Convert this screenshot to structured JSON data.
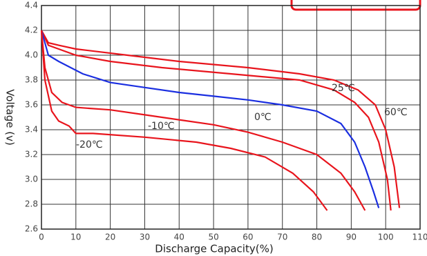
{
  "chart_data": {
    "type": "line",
    "xlabel": "Discharge Capacity(%)",
    "ylabel": "Voltage (v)",
    "xlim": [
      0,
      110
    ],
    "xticks": [
      0,
      10,
      20,
      30,
      40,
      50,
      60,
      70,
      80,
      90,
      100,
      110
    ],
    "ylim": [
      2.6,
      4.4
    ],
    "yticks": [
      2.6,
      2.8,
      {
        "value": 3,
        "label": "3.0"
      },
      3.2,
      3.4,
      3.6,
      3.8,
      {
        "value": 4,
        "label": "4.0"
      },
      4.2,
      4.4
    ],
    "grid": true,
    "series": [
      {
        "name": "60℃",
        "color": "#e8141c",
        "x": [
          0,
          2,
          5,
          10,
          25,
          40,
          60,
          75,
          85,
          92,
          97,
          100,
          102.5,
          104
        ],
        "values": [
          4.2,
          4.1,
          4.08,
          4.05,
          4.0,
          3.95,
          3.9,
          3.85,
          3.8,
          3.72,
          3.6,
          3.4,
          3.1,
          2.77
        ]
      },
      {
        "name": "25℃",
        "color": "#e8141c",
        "x": [
          0,
          2,
          5,
          10,
          20,
          35,
          55,
          75,
          85,
          91,
          95,
          98,
          100.5,
          101.5
        ],
        "values": [
          4.2,
          4.08,
          4.05,
          4.0,
          3.95,
          3.9,
          3.85,
          3.8,
          3.72,
          3.62,
          3.5,
          3.3,
          3.0,
          2.75
        ]
      },
      {
        "name": "0℃",
        "color": "#1a2ee0",
        "x": [
          0,
          2,
          5,
          12,
          20,
          30,
          40,
          50,
          60,
          70,
          80,
          87,
          91,
          94,
          96.5,
          98
        ],
        "values": [
          4.2,
          4.0,
          3.95,
          3.85,
          3.78,
          3.74,
          3.7,
          3.67,
          3.64,
          3.6,
          3.55,
          3.45,
          3.3,
          3.1,
          2.9,
          2.77
        ]
      },
      {
        "name": "-10℃",
        "color": "#e8141c",
        "x": [
          0,
          1,
          3,
          6,
          10,
          20,
          30,
          40,
          50,
          60,
          70,
          80,
          87,
          91,
          94
        ],
        "values": [
          4.2,
          3.9,
          3.7,
          3.62,
          3.58,
          3.56,
          3.52,
          3.48,
          3.44,
          3.38,
          3.3,
          3.2,
          3.05,
          2.9,
          2.75
        ]
      },
      {
        "name": "-20℃",
        "color": "#e8141c",
        "x": [
          0,
          1,
          3,
          5,
          8,
          10,
          15,
          30,
          45,
          55,
          65,
          73,
          79,
          83
        ],
        "values": [
          4.2,
          3.8,
          3.55,
          3.47,
          3.43,
          3.37,
          3.37,
          3.34,
          3.3,
          3.25,
          3.18,
          3.05,
          2.9,
          2.75
        ]
      }
    ]
  }
}
